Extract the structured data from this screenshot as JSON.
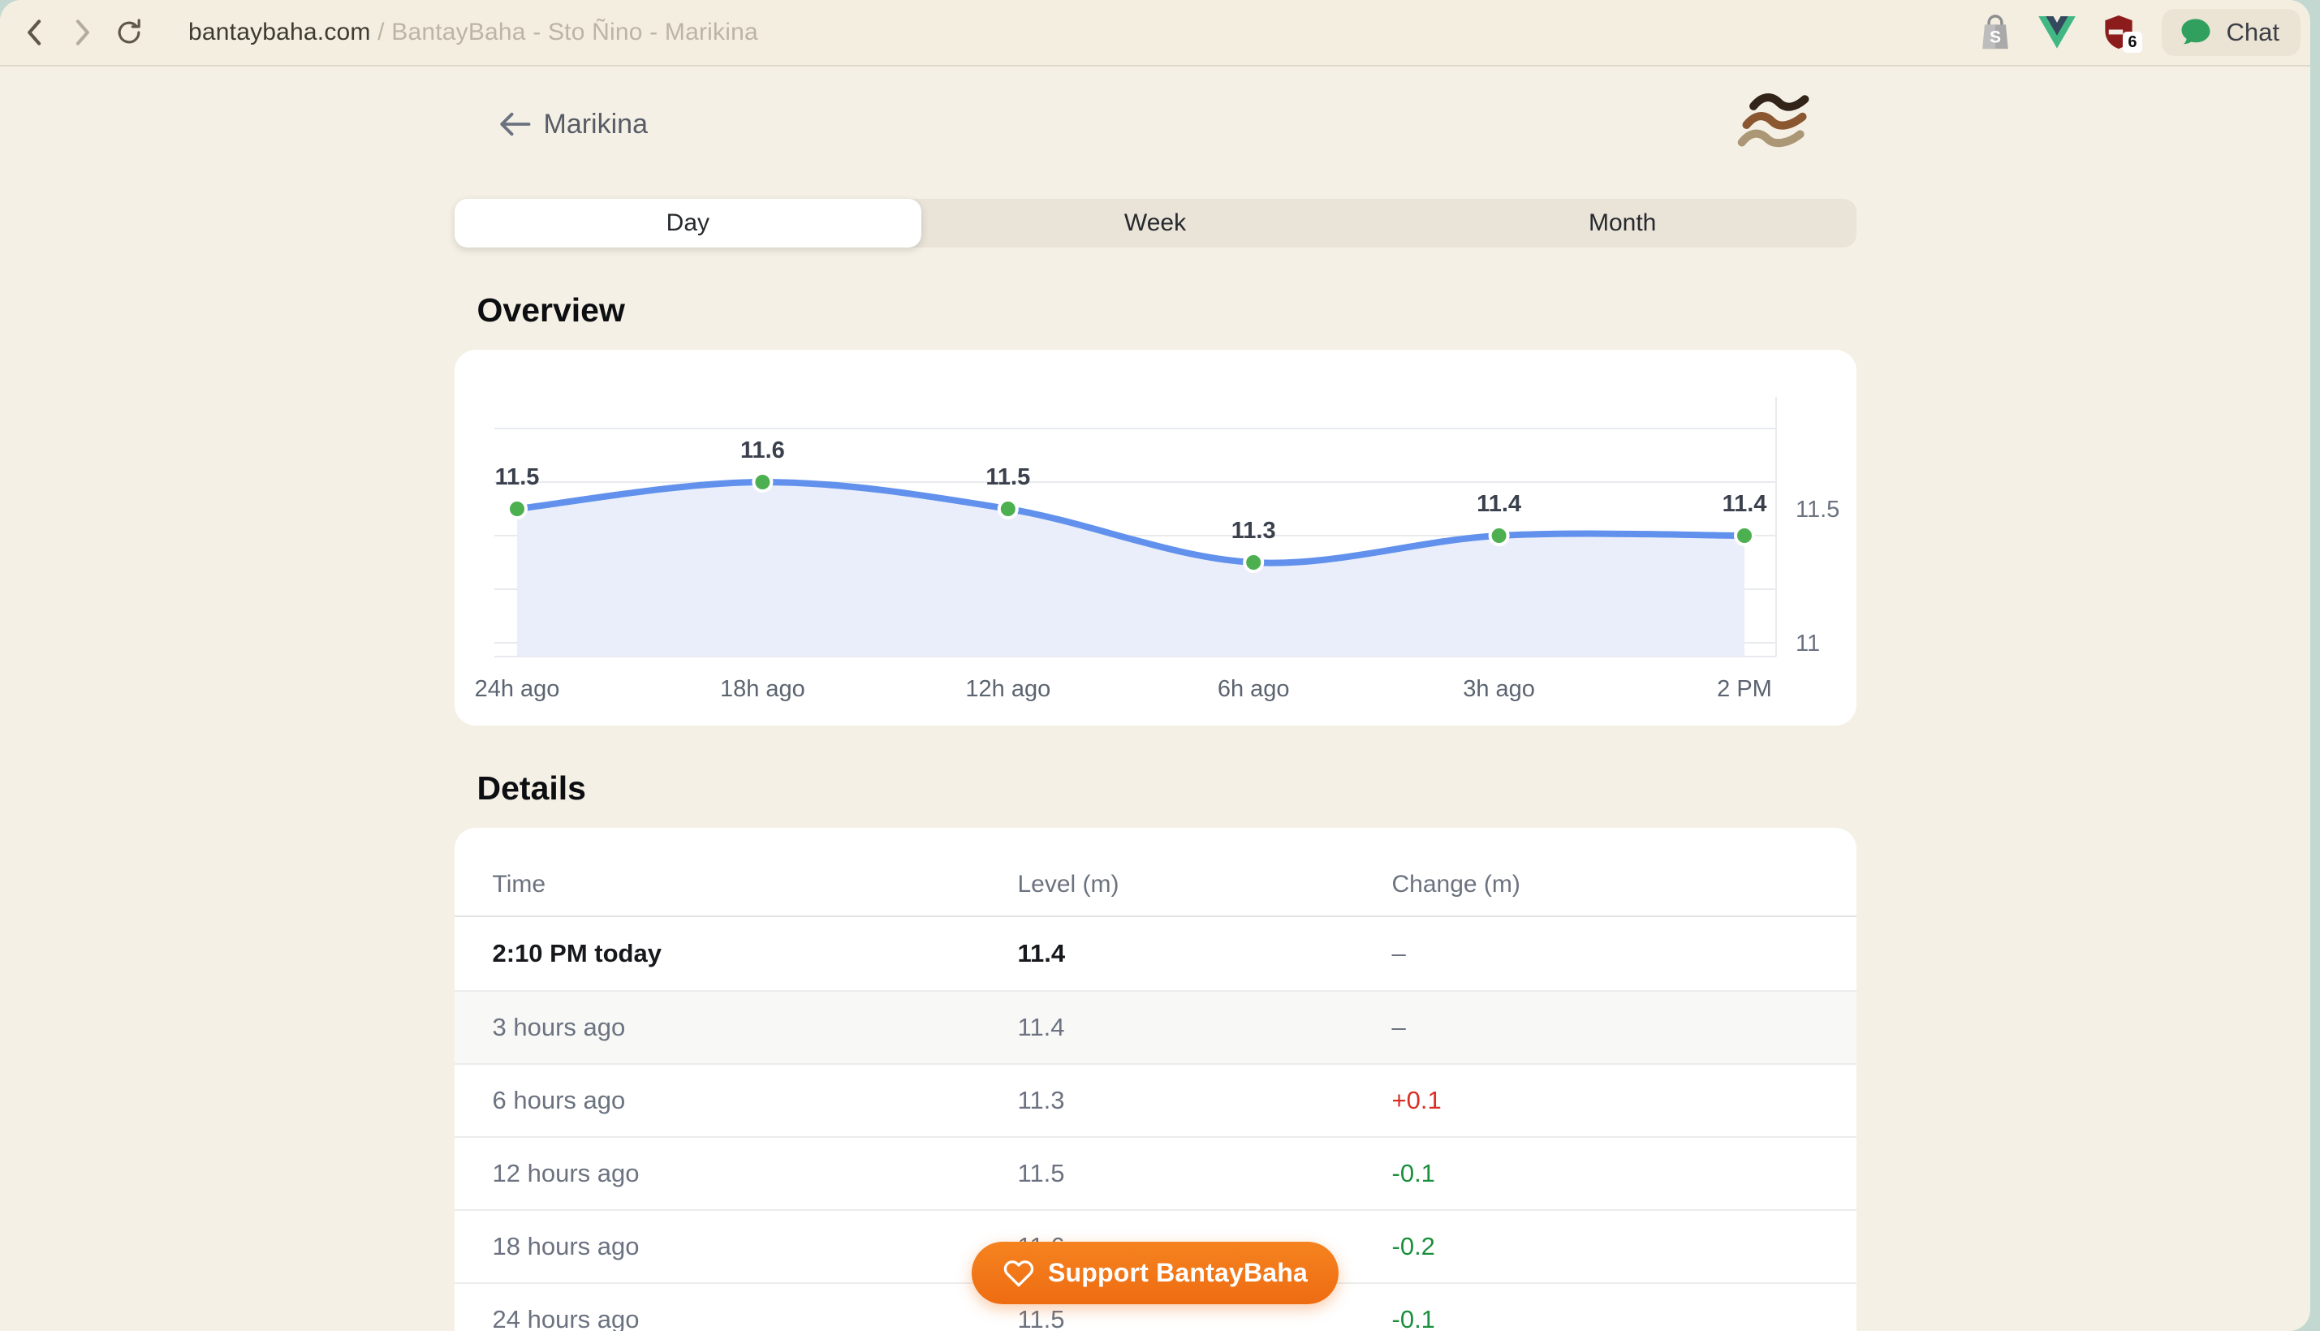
{
  "browser": {
    "url_host": "bantaybaha.com",
    "url_path": " / BantayBaha - Sto Ñino - Marikina",
    "chat_label": "Chat",
    "extension_badge": "6"
  },
  "header": {
    "title": "Marikina"
  },
  "tabs": [
    {
      "label": "Day",
      "active": true
    },
    {
      "label": "Week",
      "active": false
    },
    {
      "label": "Month",
      "active": false
    }
  ],
  "sections": {
    "overview": "Overview",
    "details": "Details"
  },
  "chart_data": {
    "type": "line",
    "x": [
      "24h ago",
      "18h ago",
      "12h ago",
      "6h ago",
      "3h ago",
      "2 PM"
    ],
    "values": [
      11.5,
      11.6,
      11.5,
      11.3,
      11.4,
      11.4
    ],
    "point_labels": [
      "11.5",
      "11.6",
      "11.5",
      "11.3",
      "11.4",
      "11.4"
    ],
    "yticks": [
      {
        "value": 11.5,
        "label": "11.5"
      },
      {
        "value": 11,
        "label": "11"
      }
    ],
    "gridline_values": [
      11.8,
      11.6,
      11.4,
      11.2,
      11.0
    ],
    "ylim": [
      10.95,
      11.85
    ],
    "grid": true,
    "legend": false,
    "title": "",
    "xlabel": "",
    "ylabel": ""
  },
  "table": {
    "columns": [
      "Time",
      "Level (m)",
      "Change (m)"
    ],
    "rows": [
      {
        "time": "2:10 PM today",
        "level": "11.4",
        "change": "–",
        "change_color": "neutral",
        "emphasis": true,
        "shaded": false
      },
      {
        "time": "3 hours ago",
        "level": "11.4",
        "change": "–",
        "change_color": "neutral",
        "emphasis": false,
        "shaded": true
      },
      {
        "time": "6 hours ago",
        "level": "11.3",
        "change": "+0.1",
        "change_color": "red",
        "emphasis": false,
        "shaded": false
      },
      {
        "time": "12 hours ago",
        "level": "11.5",
        "change": "-0.1",
        "change_color": "green",
        "emphasis": false,
        "shaded": false
      },
      {
        "time": "18 hours ago",
        "level": "11.6",
        "change": "-0.2",
        "change_color": "green",
        "emphasis": false,
        "shaded": false
      },
      {
        "time": "24 hours ago",
        "level": "11.5",
        "change": "-0.1",
        "change_color": "green",
        "emphasis": false,
        "shaded": false
      }
    ]
  },
  "support_button": {
    "label": "Support BantayBaha"
  },
  "colors": {
    "frame_teal": "#c2d8d0",
    "page_beige": "#f5f0e5",
    "toolbar_beige": "#f4eee1",
    "line_blue": "#6191ec",
    "fill_blue": "#e9eefa",
    "point_green": "#4caf50",
    "change_red": "#d93025",
    "change_green": "#1a8f3c",
    "accent_orange": "#ee6c12",
    "gridline": "#e8eaee"
  }
}
